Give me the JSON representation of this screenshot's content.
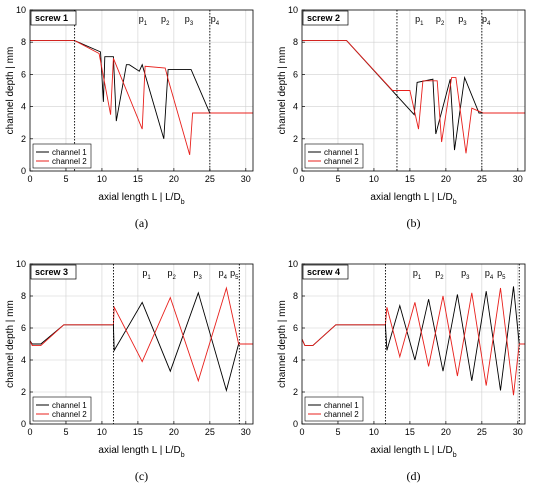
{
  "chart_data": [
    {
      "type": "line",
      "panel": "(a)",
      "screw_label": "screw 1",
      "xlabel": "axial length L  |  L/D",
      "xlabel_sub": "b",
      "ylabel": "channel depth  |  mm",
      "xlim": [
        0,
        31
      ],
      "ylim": [
        0,
        10
      ],
      "xticks": [
        0,
        5,
        10,
        15,
        20,
        25,
        30
      ],
      "yticks": [
        0,
        2,
        4,
        6,
        8,
        10
      ],
      "vlines": [
        6.2,
        25.0
      ],
      "p_labels": [
        {
          "base": "p",
          "sub": "1",
          "x": 15.7
        },
        {
          "base": "p",
          "sub": "2",
          "x": 18.8
        },
        {
          "base": "p",
          "sub": "3",
          "x": 22.1
        },
        {
          "base": "p",
          "sub": "4",
          "x": 25.7
        }
      ],
      "legend": {
        "position": "bottom-left",
        "entries": [
          "channel 1",
          "channel 2"
        ]
      },
      "series": [
        {
          "name": "channel 1",
          "color": "#000000",
          "x": [
            0,
            6.2,
            9.8,
            10.2,
            10.4,
            11.6,
            12.0,
            13.4,
            13.8,
            15.2,
            15.6,
            18.6,
            19.2,
            22.4,
            25.0,
            31
          ],
          "y": [
            8.1,
            8.1,
            7.4,
            4.3,
            7.1,
            7.1,
            3.1,
            6.6,
            6.6,
            6.2,
            6.6,
            2.0,
            6.3,
            6.3,
            3.6,
            3.6
          ]
        },
        {
          "name": "channel 2",
          "color": "#e8201c",
          "x": [
            0,
            6.2,
            9.6,
            11.2,
            11.6,
            15.6,
            16.0,
            18.8,
            19.2,
            22.2,
            22.6,
            31
          ],
          "y": [
            8.1,
            8.1,
            7.3,
            3.5,
            7.0,
            2.6,
            6.5,
            6.4,
            5.7,
            1.0,
            3.6,
            3.6
          ]
        }
      ]
    },
    {
      "type": "line",
      "panel": "(b)",
      "screw_label": "screw 2",
      "xlabel": "axial length L  |  L/D",
      "xlabel_sub": "b",
      "ylabel": "channel depth  |  mm",
      "xlim": [
        0,
        31
      ],
      "ylim": [
        0,
        10
      ],
      "xticks": [
        0,
        5,
        10,
        15,
        20,
        25,
        30
      ],
      "yticks": [
        0,
        2,
        4,
        6,
        8,
        10
      ],
      "vlines": [
        13.2,
        25.0
      ],
      "p_labels": [
        {
          "base": "p",
          "sub": "1",
          "x": 16.3
        },
        {
          "base": "p",
          "sub": "2",
          "x": 19.2
        },
        {
          "base": "p",
          "sub": "3",
          "x": 22.3
        },
        {
          "base": "p",
          "sub": "4",
          "x": 25.6
        }
      ],
      "legend": {
        "position": "bottom-left",
        "entries": [
          "channel 1",
          "channel 2"
        ]
      },
      "series": [
        {
          "name": "channel 1",
          "color": "#000000",
          "x": [
            0,
            6.2,
            15.6,
            16.0,
            18.2,
            18.6,
            20.6,
            21.2,
            22.6,
            24.6,
            25.2,
            31
          ],
          "y": [
            8.1,
            8.1,
            3.5,
            5.5,
            5.7,
            2.3,
            5.7,
            1.3,
            5.8,
            3.6,
            3.6,
            3.6
          ]
        },
        {
          "name": "channel 2",
          "color": "#e8201c",
          "x": [
            0,
            6.2,
            12.6,
            15.0,
            16.2,
            16.8,
            18.8,
            19.4,
            20.8,
            21.4,
            22.8,
            23.6,
            25.2,
            31
          ],
          "y": [
            8.1,
            8.1,
            5.0,
            5.0,
            2.6,
            5.6,
            5.6,
            1.8,
            5.8,
            5.8,
            1.1,
            3.9,
            3.6,
            3.6
          ]
        }
      ]
    },
    {
      "type": "line",
      "panel": "(c)",
      "screw_label": "screw 3",
      "xlabel": "axial length L  |  L/D",
      "xlabel_sub": "b",
      "ylabel": "channel depth  |  mm",
      "xlim": [
        0,
        31
      ],
      "ylim": [
        0,
        10
      ],
      "xticks": [
        0,
        5,
        10,
        15,
        20,
        25,
        30
      ],
      "yticks": [
        0,
        2,
        4,
        6,
        8,
        10
      ],
      "vlines": [
        11.6,
        29.1
      ],
      "p_labels": [
        {
          "base": "p",
          "sub": "1",
          "x": 16.2
        },
        {
          "base": "p",
          "sub": "2",
          "x": 19.7
        },
        {
          "base": "p",
          "sub": "3",
          "x": 23.3
        },
        {
          "base": "p",
          "sub": "4",
          "x": 26.8
        },
        {
          "base": "p",
          "sub": "5",
          "x": 28.4
        }
      ],
      "legend": {
        "position": "bottom-left",
        "entries": [
          "channel 1",
          "channel 2"
        ]
      },
      "series": [
        {
          "name": "channel 1",
          "color": "#000000",
          "x": [
            0,
            0.3,
            1.5,
            4.7,
            11.6,
            11.7,
            15.6,
            19.5,
            23.4,
            27.3,
            29.0,
            31
          ],
          "y": [
            5.2,
            5.0,
            5.0,
            6.2,
            6.2,
            4.6,
            7.6,
            3.3,
            8.2,
            2.1,
            5.0,
            5.0
          ]
        },
        {
          "name": "channel 2",
          "color": "#e8201c",
          "x": [
            0,
            0.3,
            1.5,
            4.7,
            11.6,
            11.7,
            15.6,
            19.5,
            23.4,
            27.3,
            29.0,
            31
          ],
          "y": [
            5.2,
            4.9,
            4.9,
            6.2,
            6.2,
            7.3,
            3.9,
            7.9,
            2.7,
            8.5,
            5.0,
            5.0
          ]
        }
      ]
    },
    {
      "type": "line",
      "panel": "(d)",
      "screw_label": "screw 4",
      "xlabel": "axial length L  |  L/D",
      "xlabel_sub": "b",
      "ylabel": "channel depth  |  mm",
      "xlim": [
        0,
        31
      ],
      "ylim": [
        0,
        10
      ],
      "xticks": [
        0,
        5,
        10,
        15,
        20,
        25,
        30
      ],
      "yticks": [
        0,
        2,
        4,
        6,
        8,
        10
      ],
      "vlines": [
        11.6,
        30.2
      ],
      "p_labels": [
        {
          "base": "p",
          "sub": "1",
          "x": 16.0
        },
        {
          "base": "p",
          "sub": "2",
          "x": 19.1
        },
        {
          "base": "p",
          "sub": "3",
          "x": 22.7
        },
        {
          "base": "p",
          "sub": "4",
          "x": 26.0
        },
        {
          "base": "p",
          "sub": "5",
          "x": 27.7
        }
      ],
      "legend": {
        "position": "bottom-left",
        "entries": [
          "channel 1",
          "channel 2"
        ]
      },
      "series": [
        {
          "name": "channel 1",
          "color": "#000000",
          "x": [
            0,
            0.4,
            1.5,
            4.7,
            11.6,
            11.8,
            13.6,
            15.7,
            17.6,
            19.6,
            21.6,
            23.6,
            25.6,
            27.6,
            29.4,
            30.2,
            31
          ],
          "y": [
            5.3,
            4.9,
            4.9,
            6.2,
            6.2,
            4.6,
            7.4,
            4.0,
            7.8,
            3.3,
            8.1,
            2.7,
            8.3,
            2.1,
            8.6,
            5.0,
            5.0
          ]
        },
        {
          "name": "channel 2",
          "color": "#e8201c",
          "x": [
            0,
            0.4,
            1.5,
            4.7,
            11.6,
            11.8,
            13.6,
            15.7,
            17.6,
            19.6,
            21.6,
            23.6,
            25.6,
            27.6,
            29.4,
            30.2,
            31
          ],
          "y": [
            5.3,
            4.9,
            4.9,
            6.2,
            6.2,
            7.3,
            4.2,
            7.6,
            3.6,
            8.0,
            3.0,
            8.2,
            2.4,
            8.5,
            1.8,
            5.0,
            5.0
          ]
        }
      ]
    }
  ]
}
